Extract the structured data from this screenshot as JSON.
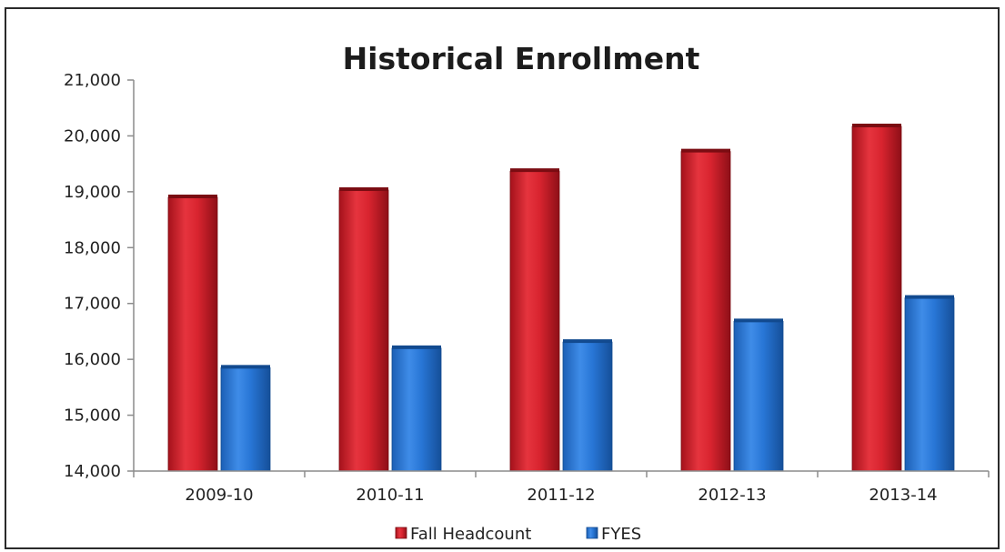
{
  "chart_data": {
    "type": "bar",
    "title": "Historical Enrollment",
    "xlabel": "",
    "ylabel": "",
    "categories": [
      "2009-10",
      "2010-11",
      "2011-12",
      "2012-13",
      "2013-14"
    ],
    "series": [
      {
        "name": "Fall Headcount",
        "color": "#d8242f",
        "values": [
          18900,
          19030,
          19370,
          19720,
          20170
        ]
      },
      {
        "name": "FYES",
        "color": "#2876d6",
        "values": [
          15850,
          16200,
          16310,
          16680,
          17100
        ]
      }
    ],
    "ylim": [
      14000,
      21000
    ],
    "yticks": [
      "14,000",
      "15,000",
      "16,000",
      "17,000",
      "18,000",
      "19,000",
      "20,000",
      "21,000"
    ],
    "grid": false,
    "legend_position": "bottom"
  }
}
